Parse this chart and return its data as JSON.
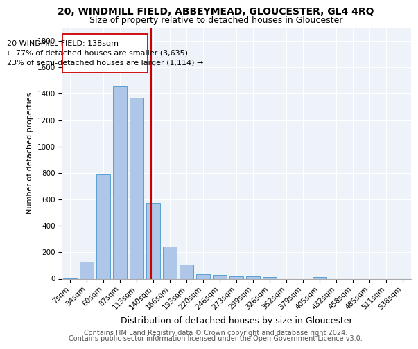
{
  "title": "20, WINDMILL FIELD, ABBEYMEAD, GLOUCESTER, GL4 4RQ",
  "subtitle": "Size of property relative to detached houses in Gloucester",
  "xlabel": "Distribution of detached houses by size in Gloucester",
  "ylabel": "Number of detached properties",
  "bar_color": "#aec6e8",
  "bar_edge_color": "#5a9fd4",
  "bar_categories": [
    "7sqm",
    "34sqm",
    "60sqm",
    "87sqm",
    "113sqm",
    "140sqm",
    "166sqm",
    "193sqm",
    "220sqm",
    "246sqm",
    "273sqm",
    "299sqm",
    "326sqm",
    "352sqm",
    "379sqm",
    "405sqm",
    "432sqm",
    "458sqm",
    "485sqm",
    "511sqm",
    "538sqm"
  ],
  "bar_values": [
    5,
    130,
    790,
    1460,
    1370,
    575,
    245,
    105,
    35,
    30,
    20,
    20,
    15,
    0,
    0,
    15,
    0,
    0,
    0,
    0,
    0
  ],
  "ylim": [
    0,
    1900
  ],
  "yticks": [
    0,
    200,
    400,
    600,
    800,
    1000,
    1200,
    1400,
    1600,
    1800
  ],
  "vline_x": 4.85,
  "vline_color": "#cc0000",
  "annotation_text": "20 WINDMILL FIELD: 138sqm\n← 77% of detached houses are smaller (3,635)\n23% of semi-detached houses are larger (1,114) →",
  "footer1": "Contains HM Land Registry data © Crown copyright and database right 2024.",
  "footer2": "Contains public sector information licensed under the Open Government Licence v3.0.",
  "background_color": "#eef2f9",
  "grid_color": "#ffffff",
  "title_fontsize": 10,
  "subtitle_fontsize": 9,
  "xlabel_fontsize": 9,
  "ylabel_fontsize": 8,
  "tick_fontsize": 7.5,
  "annotation_fontsize": 8,
  "footer_fontsize": 7
}
